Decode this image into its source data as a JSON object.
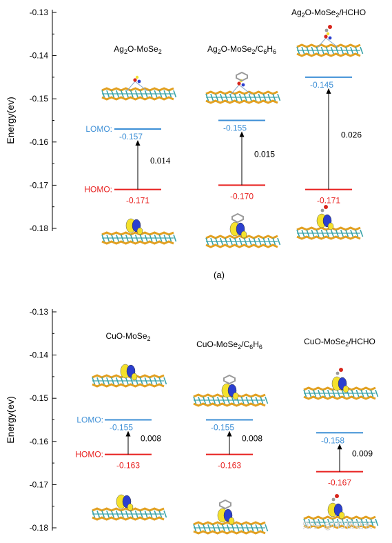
{
  "colors": {
    "lumo": "#3d8fd6",
    "homo": "#e8201f",
    "axis": "#000000",
    "arrow": "#000000",
    "slab_gold": "#e2a020",
    "slab_teal": "#3aa3a8",
    "orb_yellow": "#f4e12c",
    "orb_blue": "#2b3fcf",
    "red_atom": "#d9261c",
    "gray_atom": "#9a9a9a"
  },
  "caption_a": "(a)",
  "watermark": "知乎 @MS杨站长",
  "chart_data": [
    {
      "type": "energy-level diagram",
      "panel": "a",
      "ylabel": "Energy(ev)",
      "ylim": [
        -0.18,
        -0.13
      ],
      "yticks": [
        "-0.13",
        "-0.14",
        "-0.15",
        "-0.16",
        "-0.17",
        "-0.18"
      ],
      "lumo_tag": "LOMO:",
      "homo_tag": "HOMO:",
      "systems": [
        {
          "name": "Ag2O-MoSe2",
          "name_main": "Ag",
          "name_sub1": "2",
          "name_mid": "O-MoSe",
          "name_sub2": "2",
          "name_tail": "",
          "name_sub3": "",
          "lumo": -0.157,
          "homo": -0.171,
          "lumo_label": "-0.157",
          "homo_label": "-0.171",
          "gap": "0.014",
          "gap_serif": true,
          "adsorbate": "none"
        },
        {
          "name": "Ag2O-MoSe2/C6H6",
          "name_main": "Ag",
          "name_sub1": "2",
          "name_mid": "O-MoSe",
          "name_sub2": "2",
          "name_tail": "/C",
          "name_sub3": "6",
          "name_tail2": "H",
          "name_sub4": "6",
          "lumo": -0.155,
          "homo": -0.17,
          "lumo_label": "-0.155",
          "homo_label": "-0.170",
          "gap": "0.015",
          "gap_serif": false,
          "adsorbate": "benzene"
        },
        {
          "name": "Ag2O-MoSe2/HCHO",
          "name_main": "Ag",
          "name_sub1": "2",
          "name_mid": "O-MoSe",
          "name_sub2": "2",
          "name_tail": "/HCHO",
          "name_sub3": "",
          "lumo": -0.145,
          "homo": -0.171,
          "lumo_label": "-0.145",
          "homo_label": "-0.171",
          "gap": "0.026",
          "gap_serif": false,
          "adsorbate": "hcho"
        }
      ]
    },
    {
      "type": "energy-level diagram",
      "panel": "b",
      "ylabel": "Energy(ev)",
      "ylim": [
        -0.18,
        -0.13
      ],
      "yticks": [
        "-0.13",
        "-0.14",
        "-0.15",
        "-0.16",
        "-0.17",
        "-0.18"
      ],
      "lumo_tag": "LOMO:",
      "homo_tag": "HOMO:",
      "systems": [
        {
          "name": "CuO-MoSe2",
          "name_main": "CuO-MoSe",
          "name_sub1": "2",
          "name_mid": "",
          "name_sub2": "",
          "name_tail": "",
          "name_sub3": "",
          "lumo": -0.155,
          "homo": -0.163,
          "lumo_label": "-0.155",
          "homo_label": "-0.163",
          "gap": "0.008",
          "gap_serif": false,
          "adsorbate": "none"
        },
        {
          "name": "CuO-MoSe2/C6H6",
          "name_main": "CuO-MoSe",
          "name_sub1": "2",
          "name_mid": "/C",
          "name_sub2": "6",
          "name_tail": "H",
          "name_sub3": "6",
          "lumo": -0.155,
          "homo": -0.163,
          "lumo_label": "-0.155",
          "homo_label": "-0.163",
          "gap": "0.008",
          "gap_serif": false,
          "adsorbate": "benzene"
        },
        {
          "name": "CuO-MoSe2/HCHO",
          "name_main": "CuO-MoSe",
          "name_sub1": "2",
          "name_mid": "/HCHO",
          "name_sub2": "",
          "name_tail": "",
          "name_sub3": "",
          "lumo": -0.158,
          "homo": -0.167,
          "lumo_label": "-0.158",
          "homo_label": "-0.167",
          "gap": "0.009",
          "gap_serif": false,
          "adsorbate": "hcho"
        }
      ]
    }
  ]
}
